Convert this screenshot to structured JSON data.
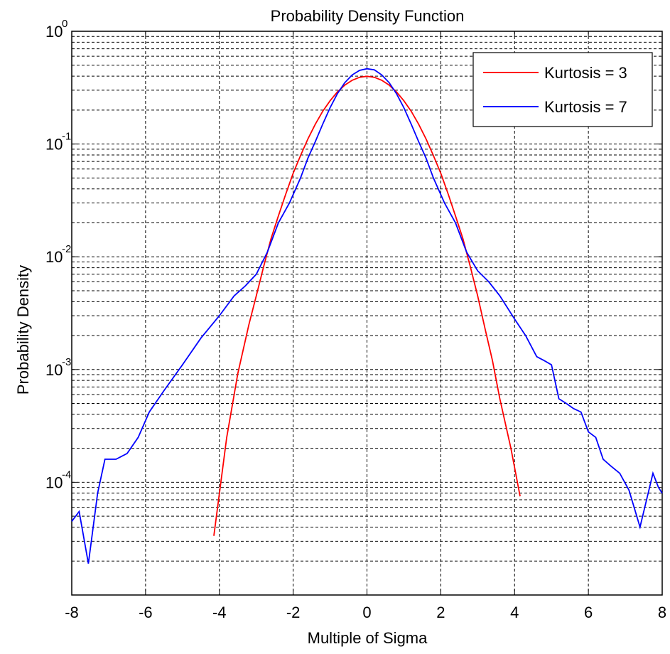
{
  "chart_data": {
    "type": "line",
    "title": "Probability Density Function",
    "xlabel": "Multiple of Sigma",
    "ylabel": "Probability Density",
    "xlim": [
      -8,
      8
    ],
    "ylim": [
      1e-05,
      1
    ],
    "yscale": "log",
    "grid": true,
    "legend_position": "top-right",
    "x_ticks": [
      "-8",
      "-6",
      "-4",
      "-2",
      "0",
      "2",
      "4",
      "6",
      "8"
    ],
    "y_ticks": [
      {
        "base": "10",
        "exp": "-4",
        "value": 0.0001
      },
      {
        "base": "10",
        "exp": "-3",
        "value": 0.001
      },
      {
        "base": "10",
        "exp": "-2",
        "value": 0.01
      },
      {
        "base": "10",
        "exp": "-1",
        "value": 0.1
      },
      {
        "base": "10",
        "exp": "0",
        "value": 1
      }
    ],
    "series": [
      {
        "name": "Kurtosis = 3",
        "color": "#ff0000",
        "points": [
          [
            -4.15,
            3.35e-05
          ],
          [
            -3.8,
            0.00025
          ],
          [
            -3.5,
            0.00092
          ],
          [
            -3.2,
            0.0025
          ],
          [
            -3.0,
            0.0045
          ],
          [
            -2.8,
            0.0082
          ],
          [
            -2.6,
            0.0145
          ],
          [
            -2.4,
            0.023
          ],
          [
            -2.2,
            0.036
          ],
          [
            -2.0,
            0.055
          ],
          [
            -1.8,
            0.079
          ],
          [
            -1.6,
            0.111
          ],
          [
            -1.4,
            0.15
          ],
          [
            -1.2,
            0.195
          ],
          [
            -1.0,
            0.242
          ],
          [
            -0.8,
            0.29
          ],
          [
            -0.6,
            0.333
          ],
          [
            -0.4,
            0.368
          ],
          [
            -0.2,
            0.391
          ],
          [
            0.0,
            0.399
          ],
          [
            0.2,
            0.391
          ],
          [
            0.4,
            0.368
          ],
          [
            0.6,
            0.333
          ],
          [
            0.8,
            0.29
          ],
          [
            1.0,
            0.242
          ],
          [
            1.2,
            0.195
          ],
          [
            1.4,
            0.15
          ],
          [
            1.6,
            0.111
          ],
          [
            1.8,
            0.079
          ],
          [
            2.0,
            0.055
          ],
          [
            2.2,
            0.036
          ],
          [
            2.4,
            0.023
          ],
          [
            2.6,
            0.0145
          ],
          [
            2.8,
            0.0082
          ],
          [
            3.0,
            0.0045
          ],
          [
            3.2,
            0.0023
          ],
          [
            3.4,
            0.0012
          ],
          [
            3.6,
            0.00055
          ],
          [
            3.9,
            0.0002
          ],
          [
            4.15,
            7.5e-05
          ]
        ]
      },
      {
        "name": "Kurtosis = 7",
        "color": "#0000ff",
        "points": [
          [
            -8.0,
            4.5e-05
          ],
          [
            -7.8,
            5.5e-05
          ],
          [
            -7.55,
            1.9e-05
          ],
          [
            -7.3,
            8e-05
          ],
          [
            -7.1,
            0.00016
          ],
          [
            -6.8,
            0.00016
          ],
          [
            -6.5,
            0.00018
          ],
          [
            -6.2,
            0.00025
          ],
          [
            -5.9,
            0.00042
          ],
          [
            -5.5,
            0.00065
          ],
          [
            -5.0,
            0.0011
          ],
          [
            -4.5,
            0.0019
          ],
          [
            -4.0,
            0.003
          ],
          [
            -3.6,
            0.0045
          ],
          [
            -3.3,
            0.0055
          ],
          [
            -3.0,
            0.007
          ],
          [
            -2.7,
            0.011
          ],
          [
            -2.4,
            0.02
          ],
          [
            -2.1,
            0.03
          ],
          [
            -1.8,
            0.05
          ],
          [
            -1.6,
            0.075
          ],
          [
            -1.4,
            0.105
          ],
          [
            -1.2,
            0.15
          ],
          [
            -1.0,
            0.21
          ],
          [
            -0.8,
            0.28
          ],
          [
            -0.6,
            0.35
          ],
          [
            -0.4,
            0.41
          ],
          [
            -0.2,
            0.45
          ],
          [
            0.0,
            0.465
          ],
          [
            0.2,
            0.455
          ],
          [
            0.4,
            0.41
          ],
          [
            0.6,
            0.35
          ],
          [
            0.8,
            0.28
          ],
          [
            1.0,
            0.21
          ],
          [
            1.2,
            0.15
          ],
          [
            1.4,
            0.105
          ],
          [
            1.6,
            0.075
          ],
          [
            1.8,
            0.05
          ],
          [
            2.1,
            0.03
          ],
          [
            2.4,
            0.02
          ],
          [
            2.7,
            0.011
          ],
          [
            3.0,
            0.0075
          ],
          [
            3.3,
            0.006
          ],
          [
            3.6,
            0.0045
          ],
          [
            4.0,
            0.0028
          ],
          [
            4.3,
            0.002
          ],
          [
            4.6,
            0.0013
          ],
          [
            4.8,
            0.0012
          ],
          [
            5.0,
            0.0011
          ],
          [
            5.2,
            0.00055
          ],
          [
            5.4,
            0.0005
          ],
          [
            5.6,
            0.00045
          ],
          [
            5.8,
            0.00042
          ],
          [
            6.0,
            0.00028
          ],
          [
            6.2,
            0.00025
          ],
          [
            6.4,
            0.00016
          ],
          [
            6.6,
            0.00014
          ],
          [
            6.85,
            0.00012
          ],
          [
            7.1,
            8.5e-05
          ],
          [
            7.4,
            4e-05
          ],
          [
            7.6,
            7.5e-05
          ],
          [
            7.75,
            0.00012
          ],
          [
            7.9,
            9e-05
          ],
          [
            8.0,
            8e-05
          ]
        ]
      }
    ]
  }
}
